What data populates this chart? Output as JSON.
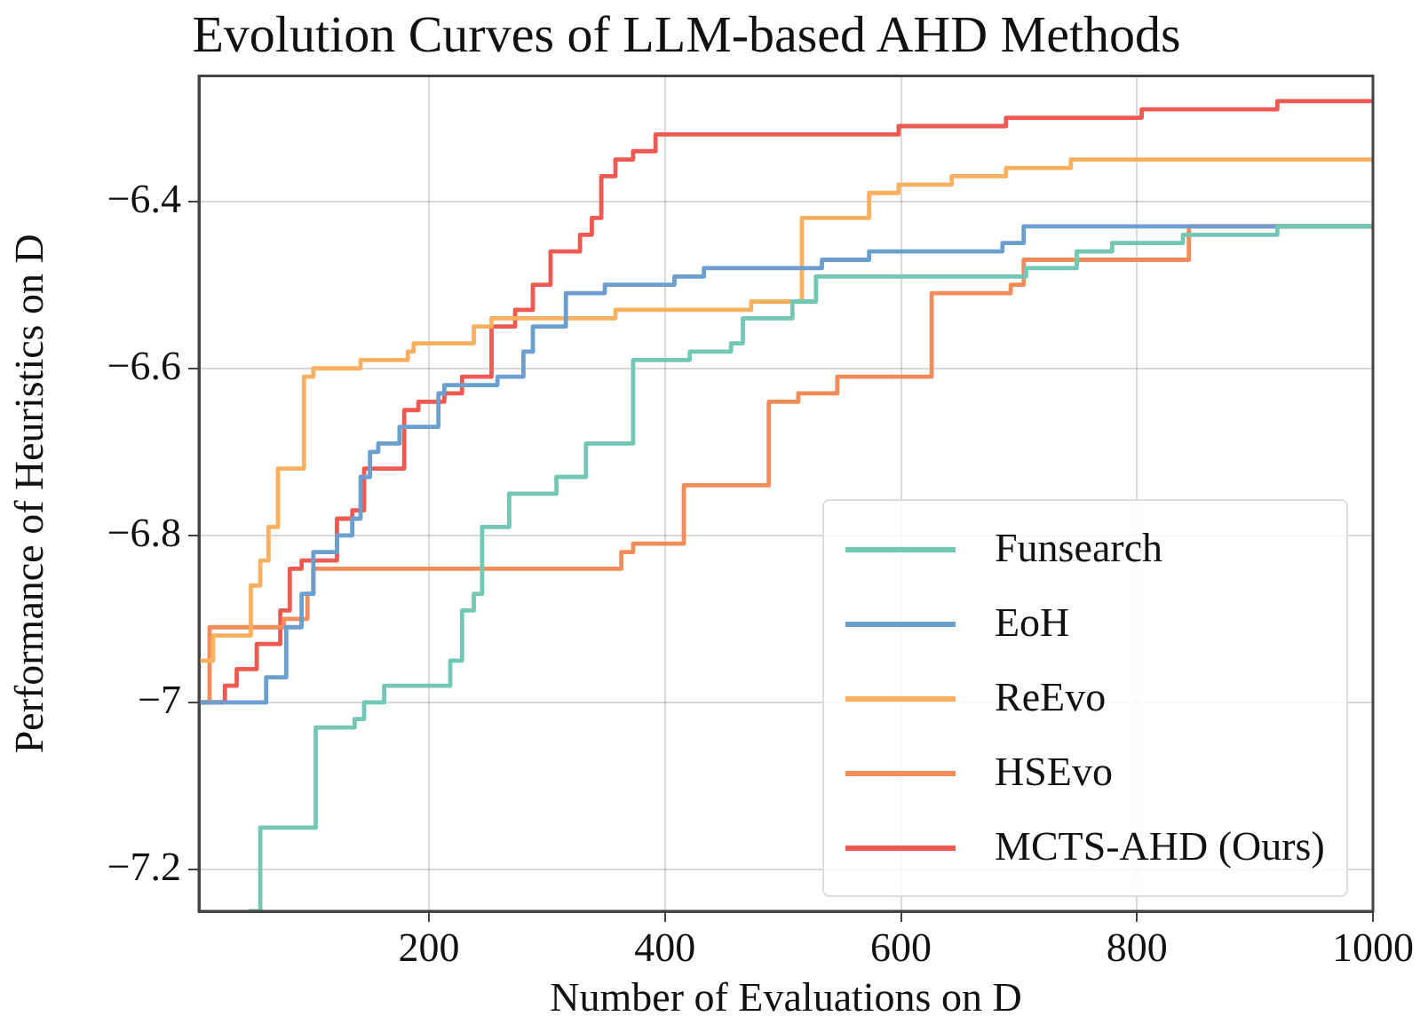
{
  "chart_data": {
    "type": "step",
    "title": "Evolution Curves of LLM-based AHD Methods",
    "xlabel": "Number of Evaluations on D",
    "ylabel": "Performance of Heuristics on D",
    "xlim": [
      5,
      1000
    ],
    "xticks": [
      200,
      400,
      600,
      800,
      1000
    ],
    "ylim": [
      -7.25,
      -6.25
    ],
    "yticks": [
      -7.2,
      -7.0,
      -6.8,
      -6.6,
      -6.4
    ],
    "grid": true,
    "legend": "bottom right",
    "line_style": "solid",
    "marker": "none",
    "series": [
      {
        "name": "Funsearch",
        "color": "#72c7b5",
        "x": [
          47,
          57,
          104,
          137,
          145,
          162,
          197,
          218,
          228,
          238,
          245,
          268,
          308,
          333,
          373,
          421,
          456,
          466,
          508,
          528,
          706,
          749,
          779,
          839,
          874,
          919,
          1000
        ],
        "values": [
          -7.25,
          -7.15,
          -7.03,
          -7.02,
          -7.0,
          -6.98,
          -6.98,
          -6.95,
          -6.89,
          -6.87,
          -6.79,
          -6.75,
          -6.73,
          -6.69,
          -6.59,
          -6.58,
          -6.57,
          -6.54,
          -6.52,
          -6.49,
          -6.48,
          -6.46,
          -6.45,
          -6.44,
          -6.44,
          -6.43,
          -6.43
        ]
      },
      {
        "name": "EoH",
        "color": "#6a9fcf",
        "x": [
          5,
          62,
          79,
          92,
          102,
          122,
          135,
          142,
          150,
          157,
          175,
          208,
          213,
          258,
          280,
          288,
          316,
          349,
          408,
          433,
          533,
          573,
          686,
          704,
          839,
          1000
        ],
        "values": [
          -7.0,
          -6.97,
          -6.91,
          -6.87,
          -6.82,
          -6.8,
          -6.78,
          -6.73,
          -6.7,
          -6.69,
          -6.67,
          -6.63,
          -6.62,
          -6.61,
          -6.58,
          -6.55,
          -6.51,
          -6.5,
          -6.49,
          -6.48,
          -6.47,
          -6.46,
          -6.45,
          -6.43,
          -6.43,
          -6.43
        ]
      },
      {
        "name": "ReEvo",
        "color": "#f9b160",
        "x": [
          5,
          17,
          49,
          57,
          64,
          72,
          94,
          102,
          142,
          182,
          187,
          238,
          253,
          358,
          409,
          438,
          473,
          508,
          516,
          573,
          598,
          643,
          689,
          744,
          1000
        ],
        "values": [
          -6.95,
          -6.92,
          -6.86,
          -6.83,
          -6.79,
          -6.72,
          -6.61,
          -6.6,
          -6.59,
          -6.58,
          -6.57,
          -6.55,
          -6.54,
          -6.53,
          -6.53,
          -6.53,
          -6.52,
          -6.52,
          -6.42,
          -6.39,
          -6.38,
          -6.37,
          -6.36,
          -6.35,
          -6.35
        ]
      },
      {
        "name": "HSEvo",
        "color": "#f28c5a",
        "x": [
          5,
          14,
          77,
          97,
          102,
          363,
          373,
          416,
          488,
          513,
          546,
          626,
          693,
          704,
          749,
          844,
          1000
        ],
        "values": [
          -7.0,
          -6.91,
          -6.9,
          -6.87,
          -6.84,
          -6.82,
          -6.81,
          -6.74,
          -6.64,
          -6.63,
          -6.61,
          -6.51,
          -6.5,
          -6.47,
          -6.47,
          -6.43,
          -6.43
        ]
      },
      {
        "name": "MCTS-AHD (Ours)",
        "color": "#ee5a52",
        "x": [
          5,
          27,
          37,
          54,
          74,
          82,
          92,
          122,
          135,
          145,
          179,
          191,
          213,
          228,
          253,
          273,
          288,
          303,
          328,
          338,
          346,
          358,
          373,
          392,
          523,
          598,
          689,
          804,
          879,
          919,
          1000
        ],
        "values": [
          -7.0,
          -6.98,
          -6.96,
          -6.93,
          -6.89,
          -6.84,
          -6.83,
          -6.78,
          -6.77,
          -6.72,
          -6.65,
          -6.64,
          -6.63,
          -6.61,
          -6.55,
          -6.53,
          -6.5,
          -6.46,
          -6.44,
          -6.42,
          -6.37,
          -6.35,
          -6.34,
          -6.32,
          -6.32,
          -6.31,
          -6.3,
          -6.29,
          -6.29,
          -6.28,
          -6.28
        ]
      }
    ]
  }
}
